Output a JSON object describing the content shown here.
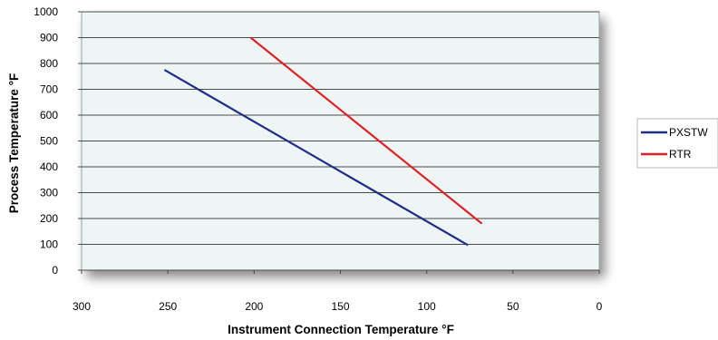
{
  "chart_data": {
    "type": "line",
    "title": "",
    "xlabel": "Instrument Connection Temperature °F",
    "ylabel": "Process Temperature °F",
    "xlim": [
      300,
      0
    ],
    "ylim": [
      0,
      1000
    ],
    "x_reversed": true,
    "x_ticks": [
      "300",
      "250",
      "200",
      "150",
      "100",
      "50",
      "0"
    ],
    "y_ticks": [
      "0",
      "100",
      "200",
      "300",
      "400",
      "500",
      "600",
      "700",
      "800",
      "900",
      "1000"
    ],
    "grid": "horizontal",
    "legend_position": "right",
    "plot_background": "#eef6f5",
    "series": [
      {
        "name": "PXSTW",
        "color": "#1f2d86",
        "points": [
          {
            "x": 252,
            "y": 775
          },
          {
            "x": 76,
            "y": 97
          }
        ]
      },
      {
        "name": "RTR",
        "color": "#e01f26",
        "points": [
          {
            "x": 202,
            "y": 900
          },
          {
            "x": 68,
            "y": 180
          }
        ]
      }
    ]
  }
}
